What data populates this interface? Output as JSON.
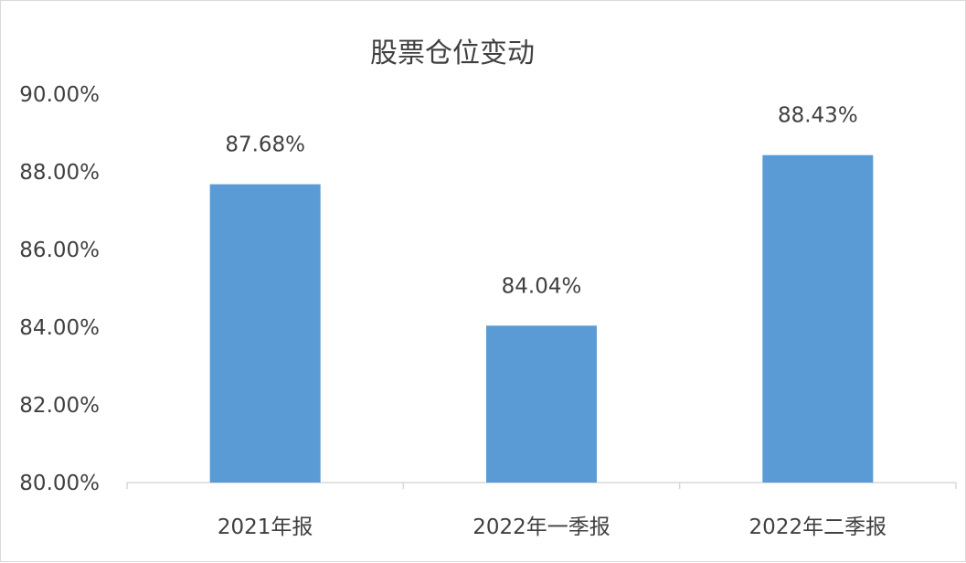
{
  "chart_data": {
    "type": "bar",
    "title": "股票仓位变动",
    "categories": [
      "2021年报",
      "2022年一季报",
      "2022年二季报"
    ],
    "values": [
      87.68,
      84.04,
      88.43
    ],
    "value_labels": [
      "87.68%",
      "84.04%",
      "88.43%"
    ],
    "ylim": [
      80,
      90
    ],
    "yticks": [
      80,
      82,
      84,
      86,
      88,
      90
    ],
    "ytick_labels": [
      "80.00%",
      "82.00%",
      "84.00%",
      "86.00%",
      "88.00%",
      "90.00%"
    ],
    "xlabel": "",
    "ylabel": "",
    "grid": false,
    "legend": "none",
    "bar_color": "#5b9bd5"
  }
}
